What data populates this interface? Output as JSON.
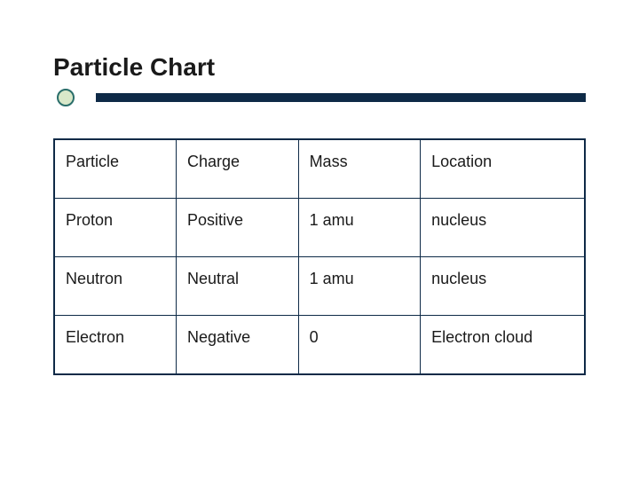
{
  "slide": {
    "title": "Particle Chart",
    "table": {
      "type": "table",
      "border_color": "#0e2a47",
      "background_color": "#ffffff",
      "text_color": "#1a1a1a",
      "header_fontweight": "normal",
      "cell_fontsize": 18,
      "columns": [
        {
          "label": "Particle",
          "width": "23%"
        },
        {
          "label": "Charge",
          "width": "23%"
        },
        {
          "label": "Mass",
          "width": "23%"
        },
        {
          "label": "Location",
          "width": "31%"
        }
      ],
      "rows": [
        [
          "Proton",
          "Positive",
          "1 amu",
          "nucleus"
        ],
        [
          "Neutron",
          "Neutral",
          "1 amu",
          "nucleus"
        ],
        [
          "Electron",
          "Negative",
          "0",
          "Electron cloud"
        ]
      ]
    },
    "accent": {
      "bullet_border": "#2a6e6a",
      "bullet_fill": "#d9e8c9",
      "rule_color": "#0e2a47"
    }
  }
}
